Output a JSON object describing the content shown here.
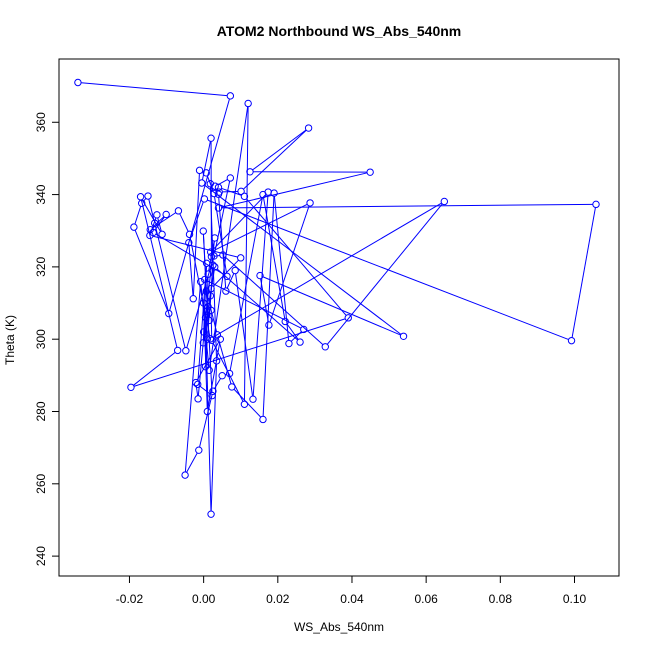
{
  "chart_data": {
    "type": "line",
    "title": "ATOM2 Northbound WS_Abs_540nm",
    "xlabel": "WS_Abs_540nm",
    "ylabel": "Theta (K)",
    "xlim": [
      -0.039,
      0.112
    ],
    "ylim": [
      234.5,
      377.5
    ],
    "xticks": [
      -0.02,
      0.0,
      0.02,
      0.04,
      0.06,
      0.08,
      0.1
    ],
    "xtick_labels": [
      "-0.02",
      "0.00",
      "0.02",
      "0.04",
      "0.06",
      "0.08",
      "0.10"
    ],
    "yticks": [
      240,
      260,
      280,
      300,
      320,
      340,
      360
    ],
    "ytick_labels": [
      "240",
      "260",
      "280",
      "300",
      "320",
      "340",
      "360"
    ],
    "grid": false,
    "color": "#0000ff",
    "series": [
      {
        "x": [
          -0.0339,
          0.0072,
          -0.0094,
          -0.0188,
          -0.0167,
          -0.015,
          -0.0132,
          -0.0048,
          0.0028,
          0.0072,
          0.0031,
          0.0042,
          0.0101,
          0.0283,
          0.0125,
          0.0449,
          0.004,
          0.1058,
          0.0992,
          0.0002,
          -0.004,
          -0.0028,
          -0.0011,
          0.0007,
          0.0028,
          0.0063,
          -0.0136,
          -0.0101,
          -0.0144,
          -0.0068,
          -0.0038,
          0.0018,
          0.0649,
          0.0328,
          0.0052,
          0.0021,
          0.002,
          -0.0005,
          0.0539,
          0.0152,
          0.0176,
          0.0287,
          0.0019,
          0.0174,
          0.0133,
          0.0085,
          0.006,
          0.004,
          0.004,
          0.011,
          0.039,
          -0.0196,
          -0.007,
          -0.017,
          -0.0112,
          -0.0126,
          -0.0145,
          0.01,
          0.002,
          -0.0001,
          0.0008,
          -0.0016,
          0.0023,
          -0.0001,
          0.0007,
          0.0037,
          0.0076,
          0.016,
          0.019,
          0.023,
          0.027,
          0.0003,
          0.0015,
          0.0025,
          0.001,
          0.0005,
          0.0012,
          0.003,
          0.0,
          0.002,
          0.0022,
          0.011,
          0.012,
          0.0015,
          -0.0008,
          -0.005,
          -0.0013,
          0.0025,
          0.005,
          0.007,
          0.016,
          0.022,
          0.026,
          0.003,
          0.0018,
          0.0012,
          0.0,
          0.001,
          0.0045,
          -0.0021,
          -0.0015,
          0.0005,
          0.002,
          0.0035,
          0.0018
        ],
        "y": [
          371.0,
          367.3,
          307.1,
          331.0,
          337.6,
          339.6,
          332.1,
          296.8,
          323.0,
          344.6,
          342.3,
          340.7,
          340.9,
          358.4,
          346.3,
          346.2,
          336.3,
          337.3,
          299.6,
          338.8,
          326.7,
          311.2,
          346.7,
          346.0,
          340.3,
          317.4,
          329.5,
          334.5,
          330.3,
          335.5,
          329.0,
          300.1,
          338.1,
          297.9,
          323.3,
          322.8,
          355.6,
          343.2,
          300.8,
          317.6,
          303.9,
          337.7,
          324.1,
          340.7,
          283.4,
          319.0,
          313.3,
          340.1,
          342.0,
          339.5,
          305.9,
          286.7,
          296.9,
          339.4,
          329.0,
          334.4,
          328.7,
          322.5,
          314.0,
          299.0,
          321.0,
          287.5,
          284.4,
          329.9,
          313.3,
          301.2,
          286.8,
          277.8,
          340.4,
          298.8,
          302.7,
          316.5,
          305.2,
          320.5,
          300.0,
          292.4,
          318.0,
          328.0,
          302.0,
          308.0,
          299.7,
          282.0,
          365.2,
          291.4,
          315.9,
          262.4,
          269.3,
          285.6,
          289.9,
          290.5,
          340.0,
          304.9,
          299.2,
          320.0,
          312.0,
          309.0,
          310.0,
          280.0,
          300.0,
          288.0,
          283.5,
          306.0,
          251.6,
          294.0,
          343.0
        ]
      }
    ]
  }
}
